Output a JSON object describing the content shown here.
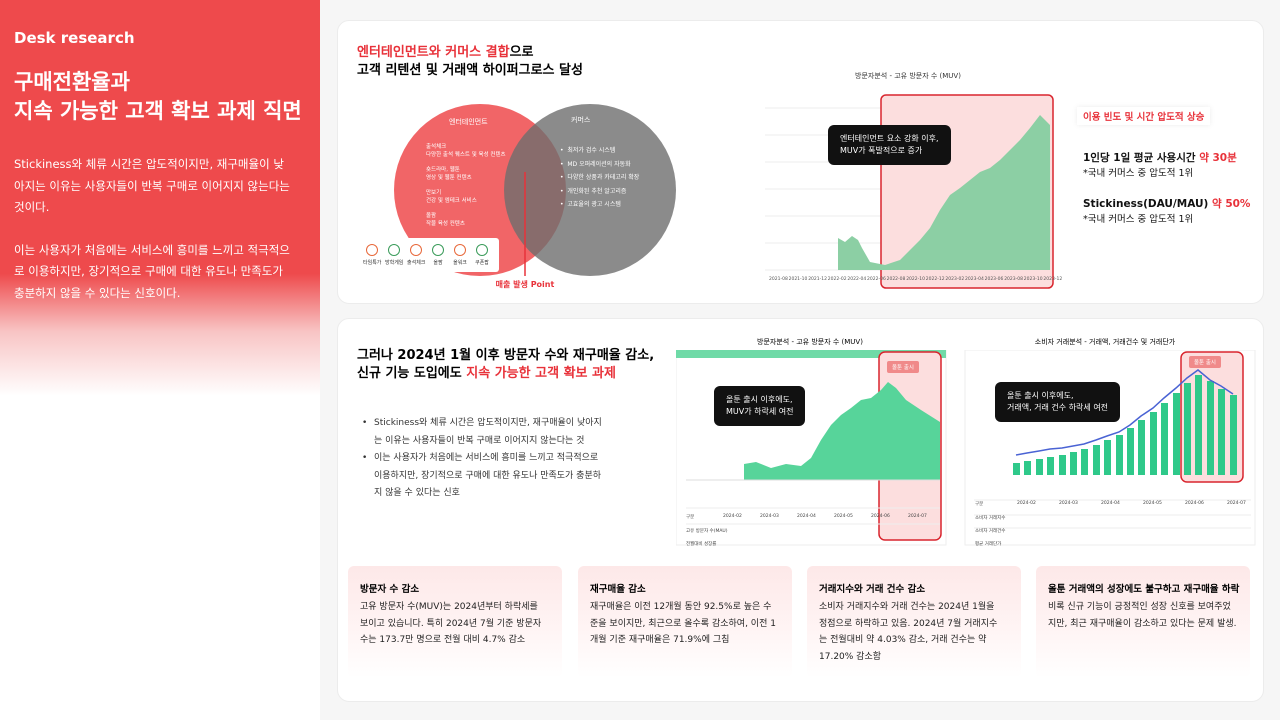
{
  "sidebar": {
    "label": "Desk research",
    "title": [
      "구매전환율과",
      "지속 가능한 고객 확보 과제 직면"
    ],
    "paragraphs": [
      [
        "Stickiness와 체류 시간은 압도적이지만, 재구매율이 낮",
        "아지는 이유는 사용자들이 반복 구매로 이어지지 않는다는",
        "것이다."
      ],
      [
        "이는 사용자가 처음에는 서비스에 흥미를 느끼고 적극적으",
        "로 이용하지만, 장기적으로 구매에 대한 유도나 만족도가",
        "충분하지 않을 수 있다는 신호이다."
      ]
    ]
  },
  "section1": {
    "heading": {
      "highlight": "엔터테인먼트와 커머스 결합",
      "rest": "으로",
      "line2": "고객 리텐션 및 거래액 하이퍼그로스 달성"
    },
    "venn": {
      "left": {
        "title": "엔터테인먼트",
        "items": [
          {
            "name": "출석체크",
            "desc": "다양한 출석 퀘스트 및 육성 컨텐츠"
          },
          {
            "name": "숏드라마, 웹툰",
            "desc": "영상 및 웹툰 컨텐츠"
          },
          {
            "name": "만보기",
            "desc": "건강 및 엠테크 서비스"
          },
          {
            "name": "올팜",
            "desc": "작물 육성 컨텐츠"
          }
        ]
      },
      "right": {
        "title": "커머스",
        "items": [
          "최저가 검수 시스템",
          "MD 오퍼레이션의 자동화",
          "다양한 상품과 카테고리 확장",
          "개인화된 추천 알고리즘",
          "고효율의 광고 시스템"
        ]
      },
      "icons": [
        "타임특가",
        "방학게임",
        "출석체크",
        "올팜",
        "올워크",
        "쿠폰팝"
      ],
      "point": "매출 발생 Point"
    },
    "chart": {
      "title": "방문자분석 - 고유 방문자 수 (MUV)",
      "x_labels": [
        "2021-08",
        "2021-10",
        "2021-12",
        "2022-02",
        "2022-04",
        "2022-06",
        "2022-08",
        "2022-10",
        "2022-12",
        "2023-02",
        "2023-04",
        "2023-06",
        "2023-08",
        "2023-10",
        "2023-12"
      ],
      "tooltip": [
        "엔터테인먼트 요소 강화 이후,",
        "MUV가 폭발적으로 증가"
      ]
    },
    "stats": {
      "tag": "이용 빈도 및  시간 압도적 상승",
      "items": [
        {
          "label": "1인당 1일 평균 사용시간",
          "value": "약 30분",
          "note": "*국내 커머스 중 압도적 1위"
        },
        {
          "label": "Stickiness(DAU/MAU)",
          "value": "약 50%",
          "note": "*국내 커머스 중 압도적 1위"
        }
      ]
    }
  },
  "section2": {
    "heading": {
      "line1": "그러나 2024년 1월 이후 방문자 수와 재구매율 감소,",
      "plain": "신규 기능 도입에도",
      "highlight": "지속 가능한 고객 확보 과제"
    },
    "bullets": [
      [
        "Stickiness와 체류 시간은 압도적이지만, 재구매율이 낮아지",
        "는 이유는 사용자들이 반복 구매로 이어지지 않는다는 것"
      ],
      [
        "이는 사용자가 처음에는 서비스에 흥미를 느끼고 적극적으로",
        "이용하지만, 장기적으로 구매에 대한 유도나 만족도가 충분하",
        "지 않을 수 있다는 신호"
      ]
    ],
    "chart_muv": {
      "title": "방문자분석 - 고유 방문자 수 (MUV)",
      "marker": "올툰 출시",
      "tooltip": [
        "올툰 출시 이후에도,",
        "MUV가 하락세 여전"
      ],
      "table_header": [
        "구분",
        "2024-02",
        "2024-03",
        "2024-04",
        "2024-05",
        "2024-06",
        "2024-07"
      ],
      "table_rows": [
        "고유 방문자 수(MAU)",
        "전월대비 성장률"
      ]
    },
    "chart_trade": {
      "title": "소비자 거래분석 - 거래액, 거래건수 및 거래단가",
      "marker": "올툰 출시",
      "tooltip": [
        "올툰 출시 이후에도,",
        "거래액, 거래 건수 하락세 여전"
      ],
      "table_header": [
        "구분",
        "2024-02",
        "2024-03",
        "2024-04",
        "2024-05",
        "2024-06",
        "2024-07"
      ],
      "table_rows": [
        "소비자 거래지수",
        "소비자 거래건수",
        "평균 거래단가"
      ]
    },
    "cards": [
      {
        "title": "방문자 수 감소",
        "lines": [
          "고유 방문자 수(MUV)는 2024년부터 하락세를",
          "보이고 있습니다. 특히 2024년 7월 기준 방문자",
          "수는 173.7만 명으로 전월 대비 4.7% 감소"
        ]
      },
      {
        "title": "재구매율 감소",
        "lines": [
          "재구매율은 이전 12개월 동안 92.5%로 높은 수",
          "준을 보이지만, 최근으로 올수록 감소하여, 이전 1",
          "개월 기준 재구매율은 71.9%에 그침"
        ]
      },
      {
        "title": "거래지수와 거래 건수 감소",
        "lines": [
          "소비자 거래지수와 거래 건수는 2024년 1월을",
          "정점으로 하락하고 있음. 2024년 7월 거래지수",
          "는 전월대비 약 4.03% 감소, 거래 건수는 약",
          "17.20% 감소함"
        ]
      },
      {
        "title": "올툰 거래액의 성장에도 불구하고 재구매율 하락",
        "lines": [
          "비록 신규 기능이 긍정적인 성장 신호를 보여주었",
          "지만, 최근 재구매율이 감소하고 있다는 문제 발생."
        ]
      }
    ]
  }
}
